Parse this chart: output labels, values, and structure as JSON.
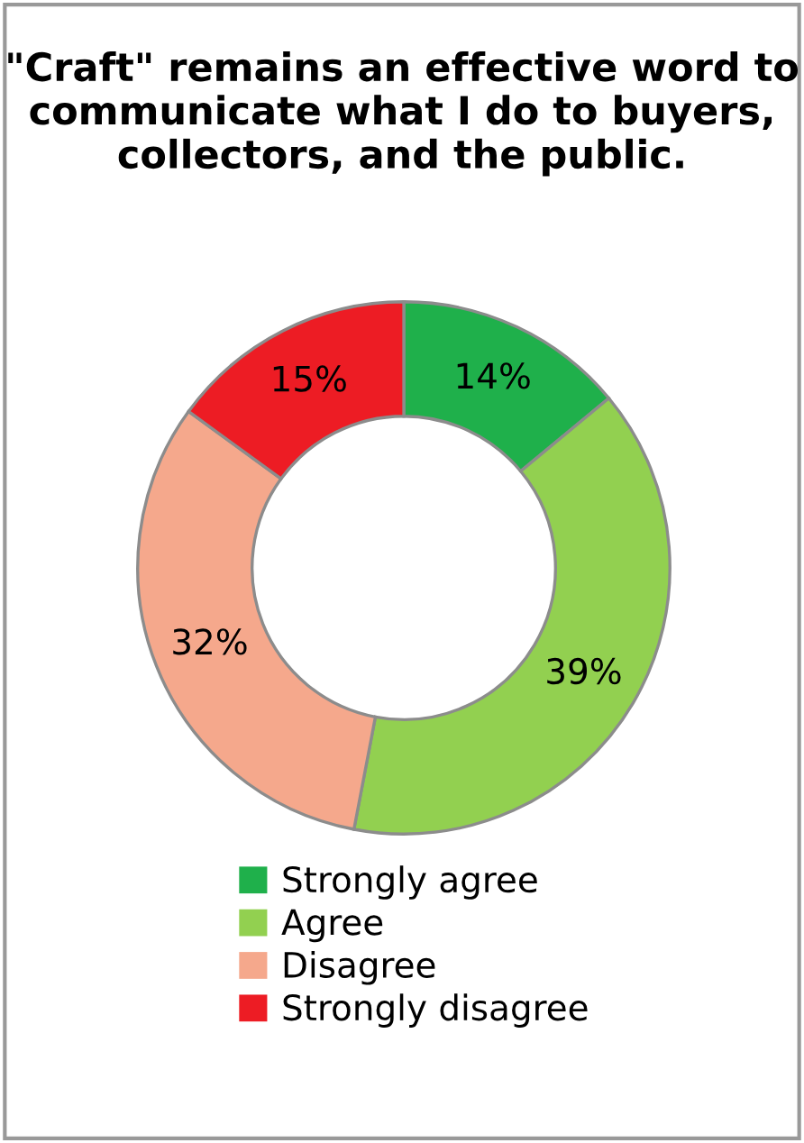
{
  "chart_data": {
    "type": "donut",
    "title": "\"Craft\" remains an effective word to communicate what I do to buyers, collectors, and the public.",
    "categories": [
      "Strongly agree",
      "Agree",
      "Disagree",
      "Strongly disagree"
    ],
    "values": [
      14,
      39,
      32,
      15
    ],
    "value_labels": [
      "14%",
      "39%",
      "32%",
      "15%"
    ],
    "colors": [
      "#1fb04b",
      "#92d050",
      "#f5a88c",
      "#ed1c24"
    ],
    "legend": "bottom"
  }
}
